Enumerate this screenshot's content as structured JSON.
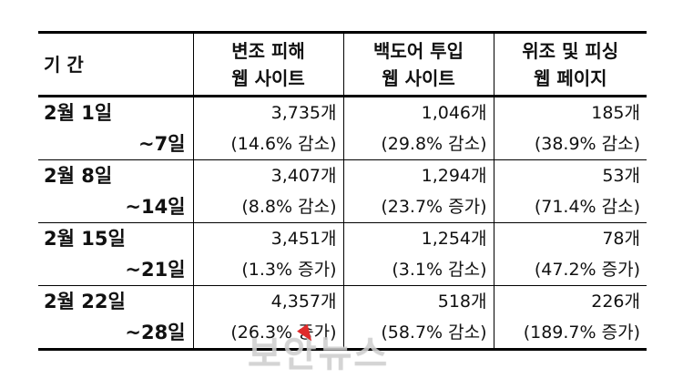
{
  "table": {
    "headers": [
      [
        "기 간"
      ],
      [
        "변조 피해",
        "웹 사이트"
      ],
      [
        "백도어 투입",
        "웹 사이트"
      ],
      [
        "위조 및 피싱",
        "웹 페이지"
      ]
    ],
    "rows": [
      {
        "period_start": "2월 1일",
        "period_end": "~7일",
        "defaced": {
          "count": "3,735개",
          "change": "(14.6% 감소)"
        },
        "backdoor": {
          "count": "1,046개",
          "change": "(29.8% 감소)"
        },
        "phishing": {
          "count": "185개",
          "change": "(38.9% 감소)"
        }
      },
      {
        "period_start": "2월 8일",
        "period_end": "~14일",
        "defaced": {
          "count": "3,407개",
          "change": "(8.8% 감소)"
        },
        "backdoor": {
          "count": "1,294개",
          "change": "(23.7% 증가)"
        },
        "phishing": {
          "count": "53개",
          "change": "(71.4% 감소)"
        }
      },
      {
        "period_start": "2월 15일",
        "period_end": "~21일",
        "defaced": {
          "count": "3,451개",
          "change": "(1.3% 증가)"
        },
        "backdoor": {
          "count": "1,254개",
          "change": "(3.1% 감소)"
        },
        "phishing": {
          "count": "78개",
          "change": "(47.2% 증가)"
        }
      },
      {
        "period_start": "2월 22일",
        "period_end": "~28일",
        "defaced": {
          "count": "4,357개",
          "change": "(26.3% 증가)"
        },
        "backdoor": {
          "count": "518개",
          "change": "(58.7% 감소)"
        },
        "phishing": {
          "count": "226개",
          "change": "(189.7% 증가)"
        }
      }
    ]
  },
  "watermark": "보안뉴스",
  "colors": {
    "text": "#111111",
    "border": "#000000",
    "watermark": "#d2d2d2",
    "cursor": "#e02b2b"
  }
}
